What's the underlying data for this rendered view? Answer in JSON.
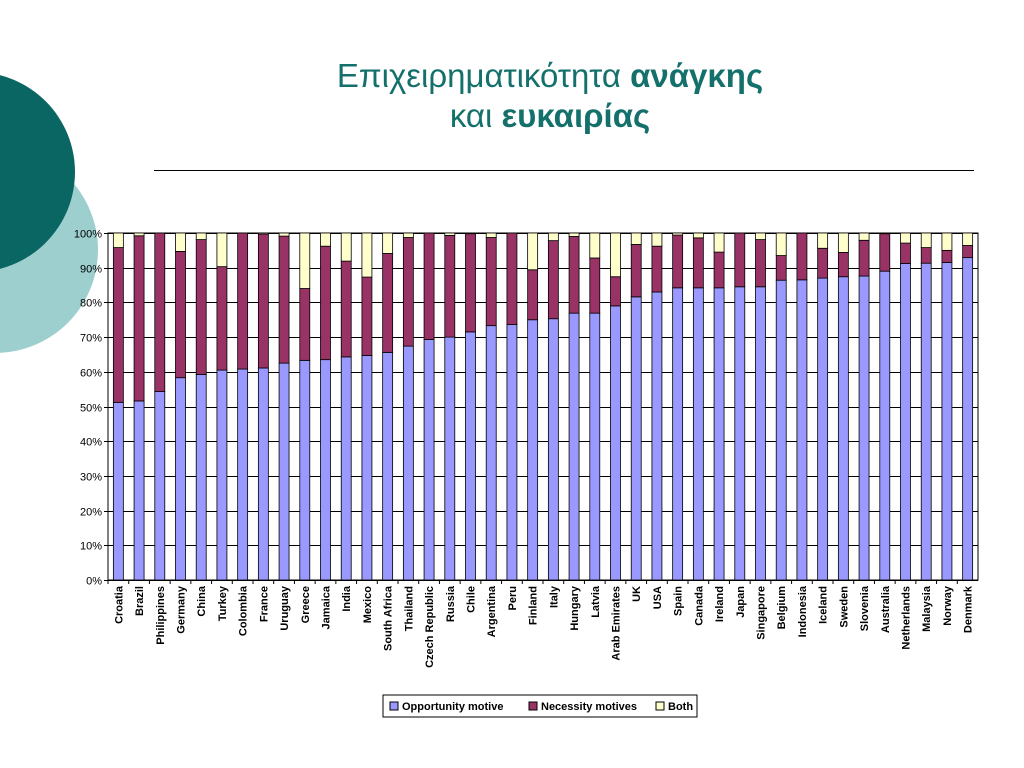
{
  "slide": {
    "title_prefix": "Επιχειρηματικότητα",
    "title_bold_1": "ανάγκης",
    "title_mid": "και",
    "title_bold_2": "ευκαιρίας"
  },
  "colors": {
    "teal_dark": "#0a6662",
    "teal_light": "#9dcfcf",
    "title": "#13706b",
    "opportunity": "#9999ff",
    "necessity": "#993366",
    "both": "#ffffcc"
  },
  "chart_data": {
    "type": "bar",
    "stacked": true,
    "y_format": "percent",
    "ylim": [
      0,
      100
    ],
    "y_ticks": [
      0,
      10,
      20,
      30,
      40,
      50,
      60,
      70,
      80,
      90,
      100
    ],
    "grid": true,
    "legend_position": "bottom",
    "categories": [
      "Croatia",
      "Brazil",
      "Philippines",
      "Germany",
      "China",
      "Turkey",
      "Colombia",
      "France",
      "Uruguay",
      "Greece",
      "Jamaica",
      "India",
      "Mexico",
      "South Africa",
      "Thailand",
      "Czech Republic",
      "Russia",
      "Chile",
      "Argentina",
      "Peru",
      "Finland",
      "Italy",
      "Hungary",
      "Latvia",
      "Arab Emirates",
      "UK",
      "USA",
      "Spain",
      "Canada",
      "Ireland",
      "Japan",
      "Singapore",
      "Belgium",
      "Indonesia",
      "Iceland",
      "Sweden",
      "Slovenia",
      "Australia",
      "Netherlands",
      "Malaysia",
      "Norway",
      "Denmark"
    ],
    "series": [
      {
        "name": "Opportunity motive",
        "color": "#9999ff",
        "values": [
          51.2,
          51.6,
          54.3,
          58.3,
          59.2,
          60.5,
          60.8,
          61.1,
          62.5,
          63.3,
          63.5,
          64.3,
          64.7,
          65.6,
          67.4,
          69.3,
          70.0,
          71.5,
          73.3,
          73.6,
          75.0,
          75.3,
          76.9,
          76.9,
          79.0,
          81.6,
          83.0,
          84.2,
          84.2,
          84.2,
          84.5,
          84.5,
          86.4,
          86.5,
          87.0,
          87.4,
          87.6,
          89.0,
          91.2,
          91.3,
          91.5,
          92.9
        ]
      },
      {
        "name": "Necessity motives",
        "color": "#993366",
        "values": [
          44.6,
          47.6,
          45.7,
          36.4,
          38.9,
          29.8,
          39.2,
          38.6,
          36.6,
          20.7,
          32.7,
          27.6,
          22.6,
          28.5,
          31.3,
          30.7,
          29.3,
          28.3,
          25.4,
          26.4,
          14.4,
          22.5,
          22.1,
          15.9,
          8.4,
          15.1,
          13.2,
          15.2,
          14.4,
          10.3,
          15.5,
          13.6,
          7.1,
          13.5,
          8.6,
          7.0,
          10.3,
          10.8,
          5.9,
          4.5,
          3.5,
          3.5
        ]
      },
      {
        "name": "Both",
        "color": "#ffffcc",
        "values": [
          4.2,
          0.8,
          0.0,
          5.3,
          1.9,
          9.7,
          0.0,
          0.3,
          0.9,
          16.0,
          3.8,
          8.1,
          12.7,
          5.9,
          1.3,
          0.0,
          0.7,
          0.2,
          1.3,
          0.0,
          10.6,
          2.2,
          1.0,
          7.2,
          12.6,
          3.3,
          3.8,
          0.6,
          1.4,
          5.5,
          0.0,
          1.9,
          6.5,
          0.0,
          4.4,
          5.6,
          2.1,
          0.2,
          2.9,
          4.2,
          5.0,
          3.6
        ]
      }
    ]
  }
}
